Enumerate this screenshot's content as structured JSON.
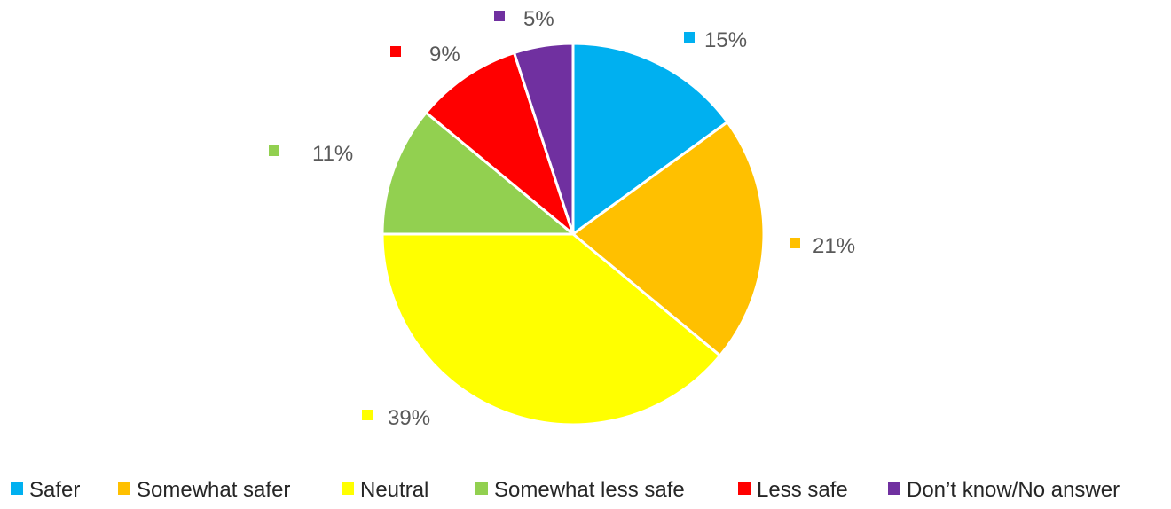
{
  "chart_data": {
    "type": "pie",
    "title": "",
    "categories": [
      "Safer",
      "Somewhat safer",
      "Neutral",
      "Somewhat less safe",
      "Less safe",
      "Don’t know/No answer"
    ],
    "values": [
      15,
      21,
      39,
      11,
      9,
      5
    ],
    "value_labels": [
      "15%",
      "21%",
      "39%",
      "11%",
      "9%",
      "5%"
    ],
    "colors": [
      "#00B0F0",
      "#FFC000",
      "#FFFF00",
      "#92D050",
      "#FF0000",
      "#7030A0"
    ],
    "legend_position": "bottom"
  }
}
